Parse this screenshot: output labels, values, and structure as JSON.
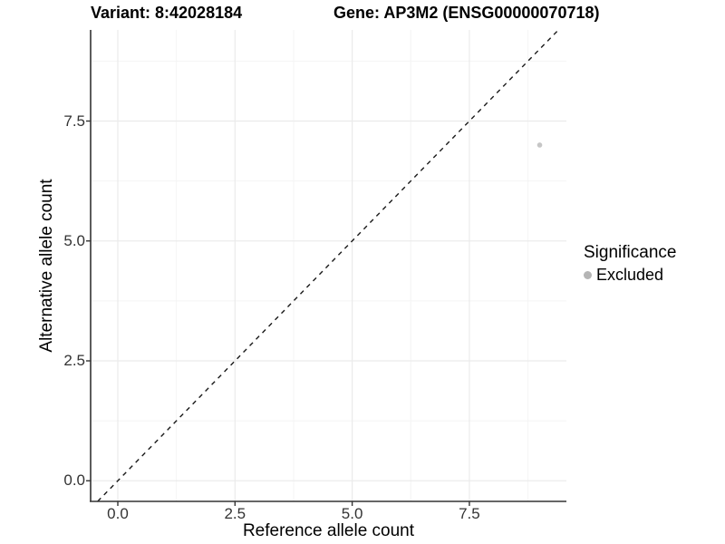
{
  "header": {
    "title_variant": "Variant: 8:42028184",
    "title_gene": "Gene: AP3M2 (ENSG00000070718)"
  },
  "chart_data": {
    "type": "scatter",
    "titles": [
      "Variant: 8:42028184",
      "Gene: AP3M2 (ENSG00000070718)"
    ],
    "xlabel": "Reference allele count",
    "ylabel": "Alternative allele count",
    "xlim": [
      -0.58,
      9.57
    ],
    "ylim": [
      -0.43,
      9.4
    ],
    "x_tick_values": [
      0,
      2.5,
      5,
      7.5
    ],
    "x_tick_labels": [
      "0.0",
      "2.5",
      "5.0",
      "7.5"
    ],
    "y_tick_values": [
      0,
      2.5,
      5,
      7.5
    ],
    "y_tick_labels": [
      "0.0",
      "2.5",
      "5.0",
      "7.5"
    ],
    "minor_tick_values": [
      1.25,
      3.75,
      6.25,
      8.75
    ],
    "grid": true,
    "series": [
      {
        "name": "Excluded",
        "color": "#c6c6c6",
        "point_radius": 2.8,
        "points": [
          {
            "x": 9,
            "y": 7
          }
        ]
      }
    ],
    "reference_line": {
      "type": "identity",
      "style": "dashed",
      "color": "#1a1a1a"
    },
    "legend": {
      "title": "Significance",
      "position": "right",
      "items": [
        {
          "label": "Excluded",
          "color": "#b5b5b5"
        }
      ]
    }
  },
  "colors": {
    "background": "#ffffff",
    "grid_major": "#ebebeb",
    "grid_minor": "#f4f4f4",
    "axis_line": "#333333",
    "tick_mark": "#333333",
    "tick_label": "#333333",
    "text": "#000000"
  }
}
